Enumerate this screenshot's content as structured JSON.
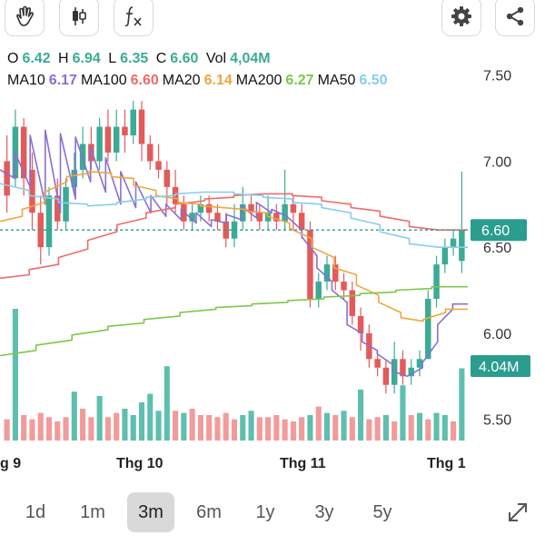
{
  "toolbar": {
    "left_buttons": [
      "hand-icon",
      "candlestick-icon",
      "fx-icon"
    ],
    "right_buttons": [
      "gear-icon",
      "share-icon"
    ]
  },
  "ohlc": {
    "o_label": "O",
    "o_value": "6.42",
    "h_label": "H",
    "h_value": "6.94",
    "l_label": "L",
    "l_value": "6.35",
    "c_label": "C",
    "c_value": "6.60",
    "vol_label": "Vol",
    "vol_value": "4,04M"
  },
  "ma_legend": [
    {
      "label": "MA10",
      "value": "6.17",
      "color": "#8a6fd1"
    },
    {
      "label": "MA100",
      "value": "6.60",
      "color": "#ef6b6b"
    },
    {
      "label": "MA20",
      "value": "6.14",
      "color": "#f0a63c"
    },
    {
      "label": "MA200",
      "value": "6.27",
      "color": "#7cc84a"
    },
    {
      "label": "MA50",
      "value": "6.50",
      "color": "#86cdf0"
    }
  ],
  "price_axis": {
    "ticks": [
      "7.50",
      "7.00",
      "6.50",
      "6.00",
      "5.50"
    ]
  },
  "x_axis": {
    "ticks": [
      "g 9",
      "Thg 10",
      "Thg 11",
      "Thg 1"
    ]
  },
  "last_price_tag": "6.60",
  "volume_tag": "4.04M",
  "colors": {
    "up": "#3bab96",
    "down": "#e45a5a",
    "vol_up": "#5fbfae",
    "vol_down": "#f29b9b"
  },
  "range_selector": {
    "options": [
      "1d",
      "1m",
      "3m",
      "6m",
      "1y",
      "3y",
      "5y"
    ],
    "active": "3m"
  },
  "chart_data": {
    "type": "candlestick",
    "price_ylim": [
      5.35,
      7.62
    ],
    "candles": [
      [
        7.0,
        6.8,
        7.15,
        6.7
      ],
      [
        6.9,
        7.2,
        7.3,
        6.85
      ],
      [
        7.2,
        6.9,
        7.25,
        6.8
      ],
      [
        6.95,
        6.7,
        7.05,
        6.6
      ],
      [
        6.7,
        6.5,
        6.8,
        6.4
      ],
      [
        6.5,
        6.8,
        6.85,
        6.45
      ],
      [
        6.8,
        6.65,
        6.9,
        6.6
      ],
      [
        6.65,
        6.85,
        6.9,
        6.6
      ],
      [
        6.85,
        6.95,
        7.05,
        6.8
      ],
      [
        6.95,
        7.1,
        7.2,
        6.9
      ],
      [
        7.1,
        7.0,
        7.2,
        6.95
      ],
      [
        7.0,
        7.2,
        7.25,
        6.95
      ],
      [
        7.2,
        7.05,
        7.3,
        7.0
      ],
      [
        7.05,
        7.2,
        7.3,
        7.0
      ],
      [
        7.2,
        7.15,
        7.3,
        7.05
      ],
      [
        7.15,
        7.3,
        7.35,
        7.1
      ],
      [
        7.3,
        7.1,
        7.35,
        7.0
      ],
      [
        7.1,
        7.0,
        7.15,
        6.95
      ],
      [
        7.0,
        6.95,
        7.1,
        6.9
      ],
      [
        6.95,
        6.85,
        7.0,
        6.75
      ],
      [
        6.85,
        6.75,
        6.95,
        6.7
      ],
      [
        6.75,
        6.65,
        6.8,
        6.6
      ],
      [
        6.65,
        6.7,
        6.75,
        6.6
      ],
      [
        6.7,
        6.75,
        6.8,
        6.65
      ],
      [
        6.75,
        6.7,
        6.8,
        6.65
      ],
      [
        6.7,
        6.65,
        6.75,
        6.6
      ],
      [
        6.65,
        6.55,
        6.7,
        6.5
      ],
      [
        6.55,
        6.65,
        6.75,
        6.5
      ],
      [
        6.65,
        6.75,
        6.85,
        6.6
      ],
      [
        6.75,
        6.7,
        6.8,
        6.65
      ],
      [
        6.7,
        6.65,
        6.75,
        6.6
      ],
      [
        6.65,
        6.7,
        6.8,
        6.6
      ],
      [
        6.7,
        6.65,
        6.75,
        6.6
      ],
      [
        6.65,
        6.75,
        6.95,
        6.6
      ],
      [
        6.75,
        6.7,
        6.8,
        6.6
      ],
      [
        6.7,
        6.6,
        6.75,
        6.55
      ],
      [
        6.6,
        6.2,
        6.65,
        6.15
      ],
      [
        6.2,
        6.3,
        6.35,
        6.15
      ],
      [
        6.3,
        6.4,
        6.45,
        6.25
      ],
      [
        6.4,
        6.3,
        6.45,
        6.25
      ],
      [
        6.3,
        6.25,
        6.35,
        6.2
      ],
      [
        6.25,
        6.1,
        6.3,
        6.05
      ],
      [
        6.1,
        6.0,
        6.15,
        5.9
      ],
      [
        6.0,
        5.85,
        6.05,
        5.8
      ],
      [
        5.85,
        5.8,
        5.9,
        5.75
      ],
      [
        5.8,
        5.7,
        5.85,
        5.65
      ],
      [
        5.7,
        5.85,
        5.95,
        5.65
      ],
      [
        5.85,
        5.75,
        5.9,
        5.7
      ],
      [
        5.75,
        5.8,
        5.85,
        5.7
      ],
      [
        5.8,
        5.85,
        5.9,
        5.75
      ],
      [
        5.85,
        6.2,
        6.25,
        5.85
      ],
      [
        6.2,
        6.4,
        6.45,
        6.15
      ],
      [
        6.4,
        6.5,
        6.55,
        6.35
      ],
      [
        6.5,
        6.55,
        6.6,
        6.45
      ],
      [
        6.42,
        6.6,
        6.94,
        6.35
      ]
    ],
    "volume": [
      {
        "v": 0.1,
        "up": false
      },
      {
        "v": 0.62,
        "up": true
      },
      {
        "v": 0.12,
        "up": false
      },
      {
        "v": 0.1,
        "up": false
      },
      {
        "v": 0.13,
        "up": false
      },
      {
        "v": 0.11,
        "up": false
      },
      {
        "v": 0.09,
        "up": false
      },
      {
        "v": 0.11,
        "up": false
      },
      {
        "v": 0.23,
        "up": true
      },
      {
        "v": 0.15,
        "up": false
      },
      {
        "v": 0.11,
        "up": false
      },
      {
        "v": 0.21,
        "up": true
      },
      {
        "v": 0.11,
        "up": false
      },
      {
        "v": 0.13,
        "up": false
      },
      {
        "v": 0.15,
        "up": true
      },
      {
        "v": 0.12,
        "up": true
      },
      {
        "v": 0.18,
        "up": true
      },
      {
        "v": 0.22,
        "up": true
      },
      {
        "v": 0.14,
        "up": true
      },
      {
        "v": 0.35,
        "up": true
      },
      {
        "v": 0.14,
        "up": false
      },
      {
        "v": 0.13,
        "up": true
      },
      {
        "v": 0.15,
        "up": false
      },
      {
        "v": 0.12,
        "up": false
      },
      {
        "v": 0.12,
        "up": false
      },
      {
        "v": 0.11,
        "up": false
      },
      {
        "v": 0.13,
        "up": false
      },
      {
        "v": 0.1,
        "up": false
      },
      {
        "v": 0.12,
        "up": true
      },
      {
        "v": 0.14,
        "up": true
      },
      {
        "v": 0.11,
        "up": false
      },
      {
        "v": 0.11,
        "up": false
      },
      {
        "v": 0.12,
        "up": false
      },
      {
        "v": 0.1,
        "up": false
      },
      {
        "v": 0.09,
        "up": false
      },
      {
        "v": 0.11,
        "up": false
      },
      {
        "v": 0.12,
        "up": true
      },
      {
        "v": 0.16,
        "up": false
      },
      {
        "v": 0.13,
        "up": true
      },
      {
        "v": 0.12,
        "up": false
      },
      {
        "v": 0.14,
        "up": true
      },
      {
        "v": 0.11,
        "up": false
      },
      {
        "v": 0.24,
        "up": true
      },
      {
        "v": 0.1,
        "up": false
      },
      {
        "v": 0.11,
        "up": false
      },
      {
        "v": 0.12,
        "up": true
      },
      {
        "v": 0.09,
        "up": false
      },
      {
        "v": 0.26,
        "up": true
      },
      {
        "v": 0.12,
        "up": false
      },
      {
        "v": 0.13,
        "up": true
      },
      {
        "v": 0.1,
        "up": false
      },
      {
        "v": 0.13,
        "up": true
      },
      {
        "v": 0.12,
        "up": true
      },
      {
        "v": 0.09,
        "up": false
      },
      {
        "v": 0.34,
        "up": true
      }
    ],
    "ma": {
      "MA10": [
        [
          6.95,
          6.9
        ],
        [
          7.05,
          6.85
        ],
        [
          7.15,
          6.75
        ],
        [
          7.18,
          6.7
        ],
        [
          7.16,
          6.78
        ],
        [
          7.14,
          6.88
        ],
        [
          7.08,
          6.82
        ],
        [
          7.02,
          6.75
        ],
        [
          6.94,
          6.73
        ],
        [
          6.88,
          6.7
        ],
        [
          6.8,
          6.68
        ],
        [
          6.75,
          6.66
        ],
        [
          6.72,
          6.64
        ],
        [
          6.7,
          6.62
        ],
        [
          6.66,
          6.64
        ],
        [
          6.69,
          6.66
        ],
        [
          6.74,
          6.67
        ],
        [
          6.76,
          6.7
        ],
        [
          6.72,
          6.68
        ],
        [
          6.68,
          6.6
        ],
        [
          6.56,
          6.45
        ],
        [
          6.38,
          6.3
        ],
        [
          6.25,
          6.18
        ],
        [
          6.05,
          6.0
        ],
        [
          5.95,
          5.9
        ],
        [
          5.88,
          5.82
        ],
        [
          5.78,
          5.75
        ],
        [
          5.75,
          5.8
        ],
        [
          5.83,
          5.95
        ],
        [
          6.05,
          6.14
        ],
        [
          6.17,
          6.17
        ]
      ],
      "MA20": [
        [
          6.65,
          6.68
        ],
        [
          6.72,
          6.76
        ],
        [
          6.82,
          6.88
        ],
        [
          6.91,
          6.93
        ],
        [
          6.94,
          6.93
        ],
        [
          6.91,
          6.9
        ],
        [
          6.86,
          6.83
        ],
        [
          6.8,
          6.78
        ],
        [
          6.76,
          6.75
        ],
        [
          6.74,
          6.73
        ],
        [
          6.73,
          6.72
        ],
        [
          6.71,
          6.7
        ],
        [
          6.68,
          6.64
        ],
        [
          6.61,
          6.55
        ],
        [
          6.5,
          6.44
        ],
        [
          6.38,
          6.34
        ],
        [
          6.28,
          6.22
        ],
        [
          6.18,
          6.12
        ],
        [
          6.09,
          6.07
        ],
        [
          6.08,
          6.12
        ],
        [
          6.14,
          6.14
        ]
      ],
      "MA50": [
        [
          6.87,
          6.83
        ],
        [
          6.8,
          6.78
        ],
        [
          6.76,
          6.75
        ],
        [
          6.74,
          6.75
        ],
        [
          6.76,
          6.78
        ],
        [
          6.79,
          6.8
        ],
        [
          6.81,
          6.82
        ],
        [
          6.82,
          6.82
        ],
        [
          6.81,
          6.8
        ],
        [
          6.79,
          6.78
        ],
        [
          6.76,
          6.75
        ],
        [
          6.73,
          6.7
        ],
        [
          6.67,
          6.63
        ],
        [
          6.59,
          6.55
        ],
        [
          6.52,
          6.5
        ],
        [
          6.5,
          6.5
        ]
      ],
      "MA100": [
        [
          6.32,
          6.34
        ],
        [
          6.37,
          6.4
        ],
        [
          6.44,
          6.49
        ],
        [
          6.54,
          6.59
        ],
        [
          6.63,
          6.67
        ],
        [
          6.7,
          6.73
        ],
        [
          6.75,
          6.77
        ],
        [
          6.78,
          6.79
        ],
        [
          6.8,
          6.81
        ],
        [
          6.81,
          6.81
        ],
        [
          6.8,
          6.79
        ],
        [
          6.77,
          6.75
        ],
        [
          6.73,
          6.71
        ],
        [
          6.68,
          6.65
        ],
        [
          6.62,
          6.6
        ],
        [
          6.6,
          6.6
        ]
      ],
      "MA200": [
        [
          5.87,
          5.9
        ],
        [
          5.93,
          5.96
        ],
        [
          5.99,
          6.02
        ],
        [
          6.04,
          6.06
        ],
        [
          6.08,
          6.1
        ],
        [
          6.12,
          6.14
        ],
        [
          6.15,
          6.16
        ],
        [
          6.17,
          6.18
        ],
        [
          6.19,
          6.2
        ],
        [
          6.21,
          6.22
        ],
        [
          6.23,
          6.24
        ],
        [
          6.25,
          6.26
        ],
        [
          6.27,
          6.27
        ]
      ]
    }
  }
}
